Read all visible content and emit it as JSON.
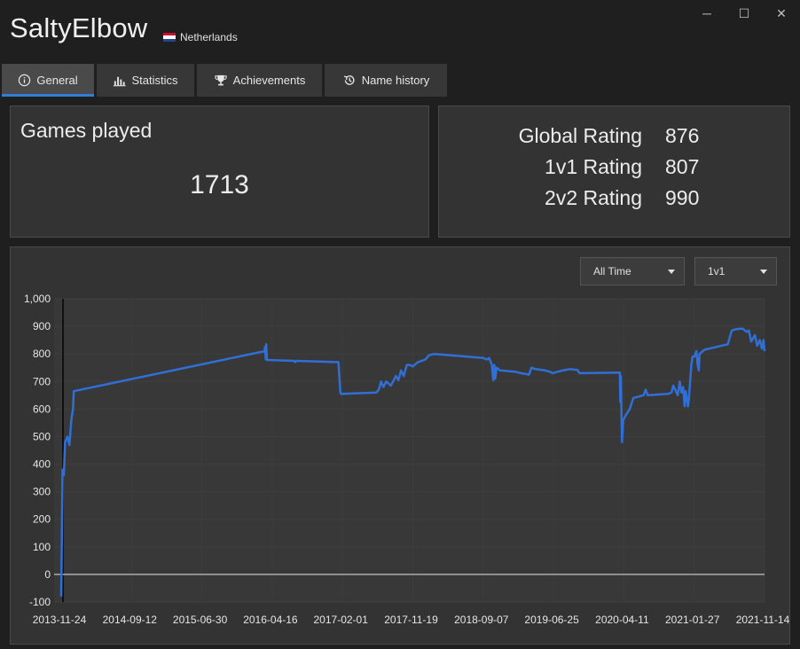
{
  "window": {
    "player_name": "SaltyElbow",
    "country": "Netherlands",
    "flag_colors": [
      "#c8102e",
      "#ffffff",
      "#21468b"
    ],
    "controls": {
      "minimize": "─",
      "maximize": "☐",
      "close": "✕"
    }
  },
  "tabs": [
    {
      "label": "General",
      "icon": "info-icon",
      "active": true
    },
    {
      "label": "Statistics",
      "icon": "bar-chart-icon",
      "active": false
    },
    {
      "label": "Achievements",
      "icon": "trophy-icon",
      "active": false
    },
    {
      "label": "Name history",
      "icon": "history-icon",
      "active": false
    }
  ],
  "games": {
    "title": "Games played",
    "value": "1713"
  },
  "ratings": [
    {
      "label": "Global Rating",
      "value": "876"
    },
    {
      "label": "1v1 Rating",
      "value": "807"
    },
    {
      "label": "2v2 Rating",
      "value": "990"
    }
  ],
  "filters": {
    "period": "All Time",
    "mode": "1v1"
  },
  "colors": {
    "accent": "#2f7fd8",
    "line": "#2f6fd6"
  },
  "chart_data": {
    "type": "line",
    "title": "",
    "xlabel": "",
    "ylabel": "",
    "ylim": [
      -100,
      1000
    ],
    "xlim": [
      "2013-11-24",
      "2021-11-14"
    ],
    "grid": true,
    "y_ticks": [
      "1,000",
      "900",
      "800",
      "700",
      "600",
      "500",
      "400",
      "300",
      "200",
      "100",
      "0",
      "-100"
    ],
    "x_ticks": [
      "2013-11-24",
      "2014-09-12",
      "2015-06-30",
      "2016-04-16",
      "2017-02-01",
      "2017-11-19",
      "2018-09-07",
      "2019-06-25",
      "2020-04-11",
      "2021-01-27",
      "2021-11-14"
    ],
    "series": [
      {
        "points": [
          [
            "2013-11-24",
            -80
          ],
          [
            "2013-11-30",
            380
          ],
          [
            "2013-12-05",
            360
          ],
          [
            "2013-12-10",
            480
          ],
          [
            "2013-12-20",
            500
          ],
          [
            "2013-12-28",
            470
          ],
          [
            "2014-01-05",
            560
          ],
          [
            "2014-01-12",
            600
          ],
          [
            "2014-01-15",
            665
          ],
          [
            "2016-03-15",
            810
          ],
          [
            "2016-03-17",
            825
          ],
          [
            "2016-03-20",
            780
          ],
          [
            "2016-03-22",
            835
          ],
          [
            "2016-03-25",
            778
          ],
          [
            "2016-07-15",
            775
          ],
          [
            "2016-07-20",
            770
          ],
          [
            "2016-07-25",
            775
          ],
          [
            "2017-01-15",
            770
          ],
          [
            "2017-01-20",
            700
          ],
          [
            "2017-01-23",
            660
          ],
          [
            "2017-01-26",
            655
          ],
          [
            "2017-06-20",
            660
          ],
          [
            "2017-07-01",
            670
          ],
          [
            "2017-07-10",
            700
          ],
          [
            "2017-07-20",
            680
          ],
          [
            "2017-08-01",
            700
          ],
          [
            "2017-08-20",
            685
          ],
          [
            "2017-09-10",
            720
          ],
          [
            "2017-09-20",
            705
          ],
          [
            "2017-10-01",
            740
          ],
          [
            "2017-10-12",
            720
          ],
          [
            "2017-10-25",
            760
          ],
          [
            "2017-11-05",
            760
          ],
          [
            "2017-11-19",
            755
          ],
          [
            "2017-12-10",
            770
          ],
          [
            "2018-01-10",
            780
          ],
          [
            "2018-01-25",
            795
          ],
          [
            "2018-02-15",
            800
          ],
          [
            "2018-09-07",
            785
          ],
          [
            "2018-09-20",
            780
          ],
          [
            "2018-10-01",
            785
          ],
          [
            "2018-10-12",
            760
          ],
          [
            "2018-10-18",
            705
          ],
          [
            "2018-10-22",
            760
          ],
          [
            "2018-10-26",
            710
          ],
          [
            "2018-11-01",
            750
          ],
          [
            "2018-11-15",
            740
          ],
          [
            "2019-01-20",
            735
          ],
          [
            "2019-02-10",
            730
          ],
          [
            "2019-03-15",
            725
          ],
          [
            "2019-03-25",
            750
          ],
          [
            "2019-04-10",
            745
          ],
          [
            "2019-05-20",
            740
          ],
          [
            "2019-06-10",
            735
          ],
          [
            "2019-06-20",
            730
          ],
          [
            "2019-08-01",
            740
          ],
          [
            "2019-09-01",
            745
          ],
          [
            "2019-10-01",
            742
          ],
          [
            "2019-10-10",
            730
          ],
          [
            "2020-03-25",
            732
          ],
          [
            "2020-03-27",
            625
          ],
          [
            "2020-03-29",
            720
          ],
          [
            "2020-04-03",
            480
          ],
          [
            "2020-04-08",
            560
          ],
          [
            "2020-04-20",
            580
          ],
          [
            "2020-05-05",
            600
          ],
          [
            "2020-05-20",
            640
          ],
          [
            "2020-07-01",
            650
          ],
          [
            "2020-07-10",
            670
          ],
          [
            "2020-07-18",
            650
          ],
          [
            "2020-10-10",
            655
          ],
          [
            "2020-10-25",
            660
          ],
          [
            "2020-11-01",
            685
          ],
          [
            "2020-11-20",
            650
          ],
          [
            "2020-11-28",
            700
          ],
          [
            "2020-12-05",
            660
          ],
          [
            "2020-12-12",
            680
          ],
          [
            "2020-12-18",
            610
          ],
          [
            "2020-12-23",
            665
          ],
          [
            "2021-01-01",
            610
          ],
          [
            "2021-01-05",
            640
          ],
          [
            "2021-01-10",
            700
          ],
          [
            "2021-01-15",
            760
          ],
          [
            "2021-01-20",
            790
          ],
          [
            "2021-01-27",
            790
          ],
          [
            "2021-02-05",
            810
          ],
          [
            "2021-02-10",
            760
          ],
          [
            "2021-02-15",
            740
          ],
          [
            "2021-02-18",
            800
          ],
          [
            "2021-03-10",
            815
          ],
          [
            "2021-06-15",
            835
          ],
          [
            "2021-07-01",
            885
          ],
          [
            "2021-07-20",
            890
          ],
          [
            "2021-08-15",
            892
          ],
          [
            "2021-09-01",
            880
          ],
          [
            "2021-09-10",
            885
          ],
          [
            "2021-09-20",
            845
          ],
          [
            "2021-10-05",
            868
          ],
          [
            "2021-10-15",
            830
          ],
          [
            "2021-10-25",
            850
          ],
          [
            "2021-11-03",
            820
          ],
          [
            "2021-11-10",
            850
          ],
          [
            "2021-11-14",
            810
          ]
        ]
      }
    ]
  }
}
